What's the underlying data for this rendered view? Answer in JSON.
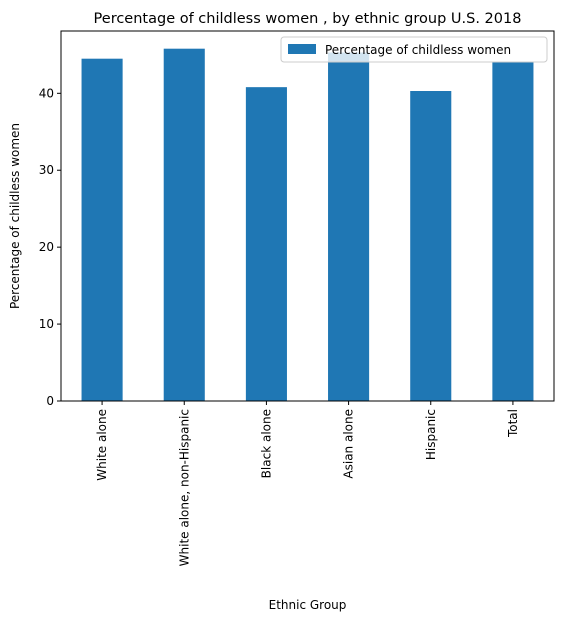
{
  "chart_data": {
    "type": "bar",
    "title": "Percentage of childless women , by ethnic group U.S. 2018",
    "xlabel": "Ethnic Group",
    "ylabel": "Percentage of childless women",
    "categories": [
      "White alone",
      "White alone, non-Hispanic",
      "Black alone",
      "Asian alone",
      "Hispanic",
      "Total"
    ],
    "series": [
      {
        "name": "Percentage of childless women",
        "color": "#1f77b4",
        "values": [
          44.5,
          45.8,
          40.8,
          45.3,
          40.3,
          44.1
        ]
      }
    ],
    "ylim": [
      0,
      48.1
    ],
    "yticks": [
      0,
      10,
      20,
      30,
      40
    ],
    "grid": false,
    "legend_position": "top-right"
  }
}
